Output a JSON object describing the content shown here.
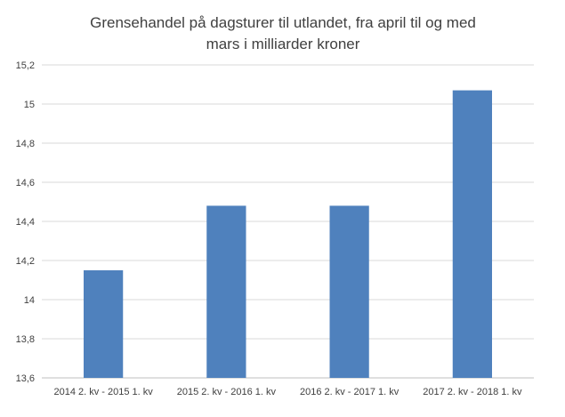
{
  "chart_data": {
    "type": "bar",
    "title_lines": [
      "Grensehandel på dagsturer til utlandet, fra april til og med",
      "mars i milliarder kroner"
    ],
    "categories": [
      "2014 2. kv - 2015 1. kv",
      "2015 2. kv - 2016 1. kv",
      "2016 2. kv - 2017 1. kv",
      "2017 2. kv - 2018 1. kv"
    ],
    "values": [
      14.15,
      14.48,
      14.48,
      15.07
    ],
    "ylim": [
      13.6,
      15.2
    ],
    "yticks": [
      13.6,
      13.8,
      14,
      14.2,
      14.4,
      14.6,
      14.8,
      15,
      15.2
    ],
    "ytick_labels": [
      "13,6",
      "13,8",
      "14",
      "14,2",
      "14,4",
      "14,6",
      "14,8",
      "15",
      "15,2"
    ],
    "grid": true,
    "legend": "none",
    "colors": {
      "bar": "#4f81bd",
      "grid": "#d9d9d9",
      "text": "#404040"
    }
  }
}
